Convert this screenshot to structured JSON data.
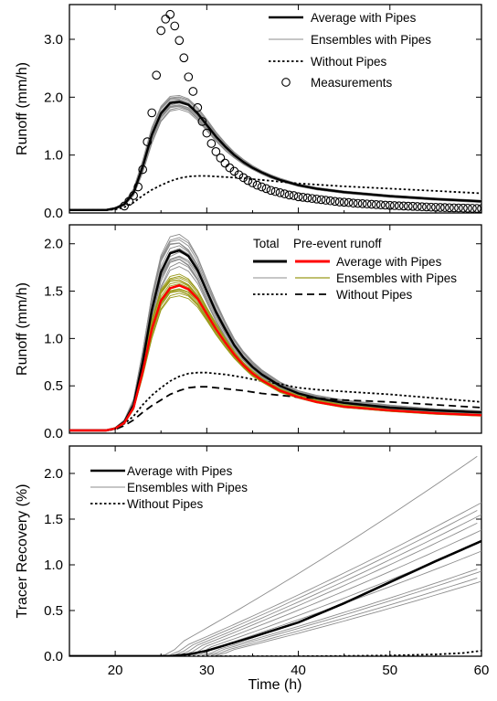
{
  "chart_data": [
    {
      "type": "line",
      "xlabel": "",
      "ylabel": "Runoff (mm/h)",
      "xlim": [
        15,
        60
      ],
      "ylim": [
        0,
        3.6
      ],
      "yticks": [
        "0.0",
        "1.0",
        "2.0",
        "3.0"
      ],
      "ytick_values": [
        0,
        1,
        2,
        3
      ],
      "legend_position": "top-right",
      "legend": [
        "Average with Pipes",
        "Ensembles with Pipes",
        "Without Pipes",
        "Measurements"
      ],
      "series": [
        {
          "name": "Average with Pipes",
          "style": "solid-thick",
          "color": "#000000",
          "x": [
            15,
            19,
            20,
            21,
            22,
            23,
            24,
            25,
            26,
            27,
            28,
            29,
            30,
            31,
            32,
            33,
            34,
            35,
            36,
            37,
            38,
            40,
            42,
            45,
            50,
            55,
            60
          ],
          "y": [
            0.05,
            0.05,
            0.08,
            0.15,
            0.35,
            0.8,
            1.35,
            1.72,
            1.9,
            1.92,
            1.87,
            1.72,
            1.52,
            1.32,
            1.15,
            1.0,
            0.88,
            0.78,
            0.7,
            0.63,
            0.57,
            0.48,
            0.42,
            0.36,
            0.29,
            0.24,
            0.2
          ]
        },
        {
          "name": "Ensembles with Pipes",
          "style": "solid-thin",
          "color": "#8c8c8c",
          "envelope_low": [
            0.05,
            0.05,
            0.07,
            0.13,
            0.3,
            0.7,
            1.2,
            1.58,
            1.76,
            1.79,
            1.74,
            1.6,
            1.42,
            1.24,
            1.08,
            0.95,
            0.84,
            0.75,
            0.67,
            0.6,
            0.55,
            0.46,
            0.4,
            0.34,
            0.27,
            0.22,
            0.18
          ],
          "envelope_high": [
            0.05,
            0.05,
            0.09,
            0.18,
            0.42,
            0.92,
            1.5,
            1.86,
            2.02,
            2.03,
            1.97,
            1.82,
            1.62,
            1.4,
            1.22,
            1.06,
            0.93,
            0.82,
            0.73,
            0.66,
            0.6,
            0.5,
            0.44,
            0.38,
            0.31,
            0.26,
            0.22
          ]
        },
        {
          "name": "Without Pipes",
          "style": "dotted",
          "color": "#000000",
          "x": [
            15,
            19,
            20,
            21,
            22,
            23,
            24,
            25,
            26,
            27,
            28,
            29,
            30,
            32,
            34,
            36,
            38,
            40,
            42,
            45,
            50,
            55,
            60
          ],
          "y": [
            0.05,
            0.05,
            0.06,
            0.1,
            0.18,
            0.3,
            0.4,
            0.48,
            0.55,
            0.6,
            0.63,
            0.64,
            0.64,
            0.62,
            0.6,
            0.57,
            0.54,
            0.51,
            0.49,
            0.46,
            0.42,
            0.38,
            0.34
          ]
        },
        {
          "name": "Measurements",
          "style": "open-circle",
          "color": "#000000",
          "x": [
            21,
            21.5,
            22,
            22.5,
            23,
            23.5,
            24,
            24.5,
            25,
            25.5,
            26,
            26.5,
            27,
            27.5,
            28,
            28.5,
            29,
            29.5,
            30,
            30.5,
            31,
            31.5,
            32,
            32.5,
            33,
            33.5,
            34,
            34.5,
            35,
            35.5,
            36,
            36.5,
            37,
            37.5,
            38,
            38.5,
            39,
            39.5,
            40,
            40.5,
            41,
            41.5,
            42,
            42.5,
            43,
            43.5,
            44,
            44.5,
            45,
            45.5,
            46,
            46.5,
            47,
            47.5,
            48,
            48.5,
            49,
            49.5,
            50,
            50.5,
            51,
            51.5,
            52,
            52.5,
            53,
            53.5,
            54,
            54.5,
            55,
            55.5,
            56,
            56.5,
            57,
            57.5,
            58,
            58.5,
            59,
            59.5,
            60
          ],
          "y": [
            0.12,
            0.2,
            0.3,
            0.45,
            0.75,
            1.23,
            1.73,
            2.38,
            3.15,
            3.35,
            3.43,
            3.23,
            2.98,
            2.68,
            2.35,
            2.1,
            1.82,
            1.58,
            1.38,
            1.2,
            1.06,
            0.95,
            0.86,
            0.78,
            0.72,
            0.66,
            0.61,
            0.56,
            0.52,
            0.48,
            0.45,
            0.42,
            0.39,
            0.37,
            0.35,
            0.33,
            0.31,
            0.3,
            0.28,
            0.27,
            0.26,
            0.25,
            0.24,
            0.23,
            0.22,
            0.21,
            0.2,
            0.19,
            0.185,
            0.18,
            0.17,
            0.165,
            0.16,
            0.155,
            0.15,
            0.145,
            0.14,
            0.135,
            0.13,
            0.127,
            0.123,
            0.12,
            0.117,
            0.114,
            0.11,
            0.107,
            0.104,
            0.1,
            0.098,
            0.095,
            0.093,
            0.09,
            0.088,
            0.086,
            0.084,
            0.082,
            0.08,
            0.078,
            0.076
          ]
        }
      ]
    },
    {
      "type": "line",
      "xlabel": "",
      "ylabel": "Runoff (mm/h)",
      "xlim": [
        15,
        60
      ],
      "ylim": [
        0,
        2.2
      ],
      "yticks": [
        "0.0",
        "0.5",
        "1.0",
        "1.5",
        "2.0"
      ],
      "ytick_values": [
        0,
        0.5,
        1,
        1.5,
        2
      ],
      "legend_position": "top-right",
      "legend_header": [
        "Total",
        "Pre-event runoff"
      ],
      "legend": [
        "Average with Pipes",
        "Ensembles with Pipes",
        "Without Pipes"
      ],
      "series": [
        {
          "name": "Average with Pipes (Total)",
          "style": "solid-thick",
          "color": "#000000",
          "x": [
            15,
            19,
            20,
            21,
            22,
            23,
            24,
            25,
            26,
            27,
            28,
            29,
            30,
            31,
            32,
            33,
            34,
            35,
            36,
            38,
            40,
            42,
            45,
            50,
            55,
            60
          ],
          "y": [
            0.03,
            0.03,
            0.05,
            0.12,
            0.3,
            0.75,
            1.3,
            1.7,
            1.9,
            1.93,
            1.87,
            1.72,
            1.5,
            1.28,
            1.1,
            0.93,
            0.8,
            0.7,
            0.62,
            0.5,
            0.42,
            0.37,
            0.32,
            0.27,
            0.24,
            0.22
          ]
        },
        {
          "name": "Ensembles with Pipes (Total)",
          "style": "solid-thin",
          "color": "#8c8c8c",
          "envelope_low": [
            0.03,
            0.03,
            0.05,
            0.11,
            0.27,
            0.66,
            1.15,
            1.53,
            1.72,
            1.76,
            1.71,
            1.58,
            1.38,
            1.18,
            1.01,
            0.86,
            0.74,
            0.65,
            0.58,
            0.47,
            0.4,
            0.35,
            0.3,
            0.25,
            0.22,
            0.2
          ],
          "envelope_high": [
            0.03,
            0.03,
            0.06,
            0.14,
            0.36,
            0.88,
            1.48,
            1.9,
            2.08,
            2.1,
            2.03,
            1.86,
            1.62,
            1.39,
            1.19,
            1.01,
            0.87,
            0.76,
            0.67,
            0.54,
            0.45,
            0.4,
            0.35,
            0.3,
            0.26,
            0.24
          ]
        },
        {
          "name": "Without Pipes (Total)",
          "style": "dotted",
          "color": "#000000",
          "x": [
            15,
            19,
            20,
            21,
            22,
            23,
            24,
            25,
            26,
            27,
            28,
            29,
            30,
            32,
            34,
            36,
            38,
            40,
            42,
            45,
            50,
            55,
            60
          ],
          "y": [
            0.03,
            0.03,
            0.05,
            0.1,
            0.18,
            0.3,
            0.4,
            0.48,
            0.55,
            0.6,
            0.63,
            0.64,
            0.64,
            0.62,
            0.59,
            0.55,
            0.52,
            0.48,
            0.46,
            0.44,
            0.41,
            0.37,
            0.33
          ]
        },
        {
          "name": "Average with Pipes (Pre-event runoff)",
          "style": "solid-thick",
          "color": "#ff0000",
          "x": [
            15,
            19,
            20,
            21,
            22,
            23,
            24,
            25,
            26,
            27,
            28,
            29,
            30,
            31,
            32,
            33,
            34,
            35,
            36,
            38,
            40,
            42,
            45,
            50,
            55,
            60
          ],
          "y": [
            0.03,
            0.03,
            0.05,
            0.11,
            0.27,
            0.65,
            1.1,
            1.4,
            1.53,
            1.56,
            1.52,
            1.42,
            1.26,
            1.1,
            0.96,
            0.83,
            0.72,
            0.63,
            0.56,
            0.45,
            0.38,
            0.33,
            0.28,
            0.24,
            0.21,
            0.19
          ]
        },
        {
          "name": "Ensembles with Pipes (Pre-event runoff)",
          "style": "solid-thin",
          "color": "#9a9a1a",
          "envelope_low": [
            0.03,
            0.03,
            0.05,
            0.1,
            0.25,
            0.6,
            1.0,
            1.3,
            1.43,
            1.45,
            1.42,
            1.33,
            1.19,
            1.04,
            0.91,
            0.79,
            0.69,
            0.6,
            0.54,
            0.43,
            0.37,
            0.32,
            0.27,
            0.23,
            0.2,
            0.18
          ],
          "envelope_high": [
            0.03,
            0.03,
            0.06,
            0.12,
            0.3,
            0.72,
            1.22,
            1.53,
            1.66,
            1.68,
            1.63,
            1.51,
            1.33,
            1.16,
            1.01,
            0.87,
            0.75,
            0.66,
            0.58,
            0.47,
            0.4,
            0.35,
            0.3,
            0.25,
            0.22,
            0.2
          ]
        },
        {
          "name": "Without Pipes (Pre-event runoff)",
          "style": "dashed",
          "color": "#000000",
          "x": [
            15,
            19,
            20,
            21,
            22,
            23,
            24,
            25,
            26,
            27,
            28,
            29,
            30,
            32,
            34,
            36,
            38,
            40,
            42,
            45,
            50,
            55,
            60
          ],
          "y": [
            0.03,
            0.03,
            0.04,
            0.08,
            0.14,
            0.22,
            0.29,
            0.35,
            0.41,
            0.45,
            0.48,
            0.49,
            0.49,
            0.47,
            0.45,
            0.42,
            0.4,
            0.38,
            0.37,
            0.35,
            0.33,
            0.3,
            0.27
          ]
        }
      ]
    },
    {
      "type": "line",
      "xlabel": "Time (h)",
      "ylabel": "Tracer Recovery (%)",
      "xlim": [
        15,
        60
      ],
      "ylim": [
        0,
        2.3
      ],
      "xticks": [
        "20",
        "30",
        "40",
        "50",
        "60"
      ],
      "xtick_values": [
        20,
        30,
        40,
        50,
        60
      ],
      "yticks": [
        "0.0",
        "0.5",
        "1.0",
        "1.5",
        "2.0"
      ],
      "ytick_values": [
        0,
        0.5,
        1,
        1.5,
        2
      ],
      "legend_position": "top-left",
      "legend": [
        "Average with Pipes",
        "Ensembles with Pipes",
        "Without Pipes"
      ],
      "series": [
        {
          "name": "Average with Pipes",
          "style": "solid-thick",
          "color": "#000000",
          "x": [
            15,
            26,
            28,
            30,
            32,
            35,
            40,
            45,
            50,
            55,
            60
          ],
          "y": [
            0,
            0,
            0.02,
            0.06,
            0.12,
            0.21,
            0.37,
            0.58,
            0.81,
            1.04,
            1.26
          ]
        },
        {
          "name": "Ensembles with Pipes",
          "style": "solid-thin",
          "color": "#8c8c8c",
          "start_x": [
            24.5,
            25,
            25.5,
            26,
            26.5,
            27,
            27.5,
            28,
            28.5,
            29,
            29.5,
            30
          ],
          "end_y_at_60": [
            2.22,
            1.68,
            1.62,
            1.55,
            1.48,
            1.38,
            1.25,
            1.15,
            0.97,
            0.93,
            0.87,
            0.82
          ]
        },
        {
          "name": "Without Pipes",
          "style": "dotted",
          "color": "#000000",
          "x": [
            15,
            40,
            45,
            50,
            55,
            58,
            60
          ],
          "y": [
            0,
            0,
            0.003,
            0.008,
            0.02,
            0.035,
            0.06
          ]
        }
      ]
    }
  ]
}
